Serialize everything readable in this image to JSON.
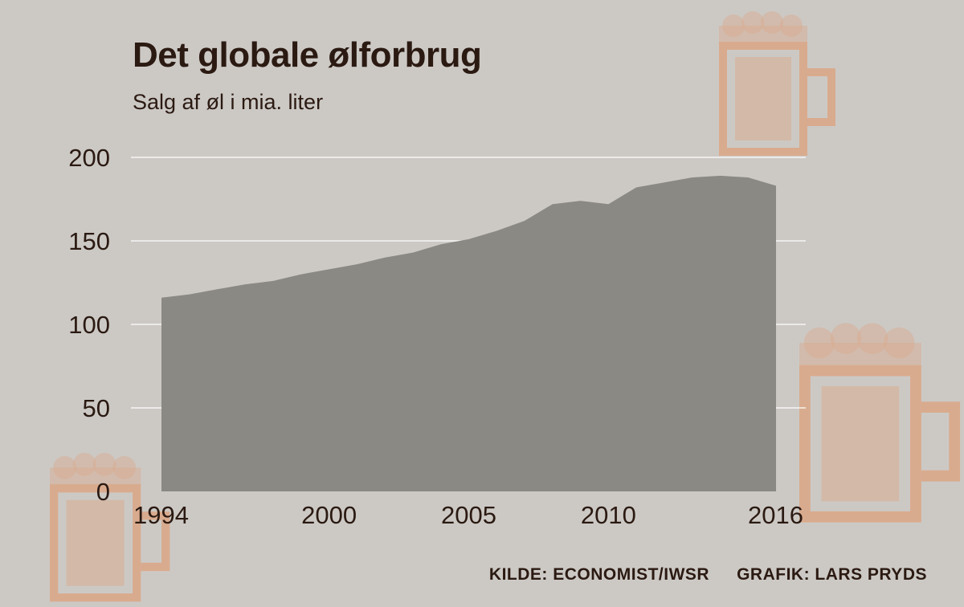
{
  "header": {
    "title": "Det globale ølforbrug",
    "subtitle": "Salg af øl i mia. liter"
  },
  "footer": {
    "source": "KILDE: ECONOMIST/IWSR",
    "credit": "GRAFIK: LARS PRYDS"
  },
  "colors": {
    "background": "#ccc9c5",
    "area": "#8b8983",
    "gridline": "#ffffff",
    "text": "#2b1a12",
    "mug": "#d9ab8e"
  },
  "icons": [
    "beer-mug-icon",
    "beer-mug-icon",
    "beer-mug-icon"
  ],
  "chart_data": {
    "type": "area",
    "title": "Det globale ølforbrug",
    "subtitle": "Salg af øl i mia. liter",
    "xlabel": "",
    "ylabel": "",
    "x": [
      1994,
      1995,
      1996,
      1997,
      1998,
      1999,
      2000,
      2001,
      2002,
      2003,
      2004,
      2005,
      2006,
      2007,
      2008,
      2009,
      2010,
      2011,
      2012,
      2013,
      2014,
      2015,
      2016
    ],
    "series": [
      {
        "values": [
          116,
          118,
          121,
          124,
          126,
          130,
          133,
          136,
          140,
          143,
          148,
          151,
          156,
          162,
          172,
          174,
          172,
          182,
          185,
          188,
          189,
          188,
          183
        ]
      }
    ],
    "xticks": [
      "1994",
      "2000",
      "2005",
      "2010",
      "2016"
    ],
    "xtick_values": [
      1994,
      2000,
      2005,
      2010,
      2016
    ],
    "yticks": [
      0,
      50,
      100,
      150,
      200
    ],
    "ylim": [
      0,
      200
    ],
    "grid": "horizontal"
  }
}
